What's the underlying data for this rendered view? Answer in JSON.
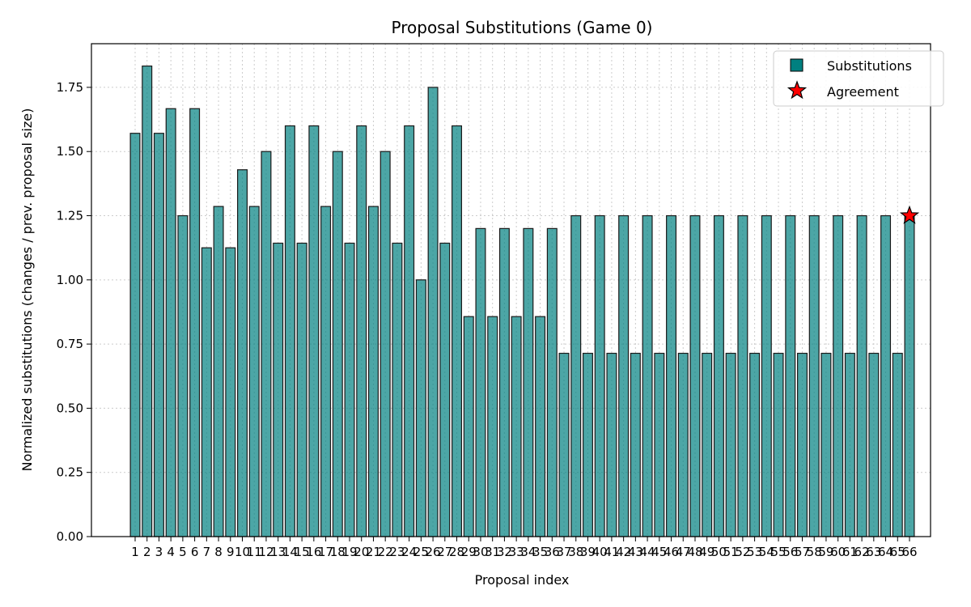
{
  "chart_data": {
    "type": "bar",
    "title": "Proposal Substitutions (Game 0)",
    "xlabel": "Proposal index",
    "ylabel": "Normalized substitutions (changes / prev. proposal size)",
    "ylim": [
      0,
      1.92
    ],
    "yticks": [
      "0.00",
      "0.25",
      "0.50",
      "0.75",
      "1.00",
      "1.25",
      "1.50",
      "1.75"
    ],
    "grid": true,
    "legend_position": "top-right",
    "categories": [
      "1",
      "2",
      "3",
      "4",
      "5",
      "6",
      "7",
      "8",
      "9",
      "10",
      "11",
      "12",
      "13",
      "14",
      "15",
      "16",
      "17",
      "18",
      "19",
      "20",
      "21",
      "22",
      "23",
      "24",
      "25",
      "26",
      "27",
      "28",
      "29",
      "30",
      "31",
      "32",
      "33",
      "34",
      "35",
      "36",
      "37",
      "38",
      "39",
      "40",
      "41",
      "42",
      "43",
      "44",
      "45",
      "46",
      "47",
      "48",
      "49",
      "50",
      "51",
      "52",
      "53",
      "54",
      "55",
      "56",
      "57",
      "58",
      "59",
      "60",
      "61",
      "62",
      "63",
      "64",
      "65",
      "66"
    ],
    "series": [
      {
        "name": "Substitutions",
        "color": "#008080",
        "values": [
          1.571,
          1.833,
          1.571,
          1.667,
          1.25,
          1.667,
          1.125,
          1.286,
          1.125,
          1.429,
          1.286,
          1.5,
          1.143,
          1.6,
          1.143,
          1.6,
          1.286,
          1.5,
          1.143,
          1.6,
          1.286,
          1.5,
          1.143,
          1.6,
          1.0,
          1.75,
          1.143,
          1.6,
          0.857,
          1.2,
          0.857,
          1.2,
          0.857,
          1.2,
          0.857,
          1.2,
          0.714,
          1.25,
          0.714,
          1.25,
          0.714,
          1.25,
          0.714,
          1.25,
          0.714,
          1.25,
          0.714,
          1.25,
          0.714,
          1.25,
          0.714,
          1.25,
          0.714,
          1.25,
          0.714,
          1.25,
          0.714,
          1.25,
          0.714,
          1.25,
          0.714,
          1.25,
          0.714,
          1.25,
          0.714,
          1.25
        ]
      }
    ],
    "agreement": {
      "name": "Agreement",
      "index": 66,
      "value": 1.25,
      "color": "#ff0000"
    }
  }
}
